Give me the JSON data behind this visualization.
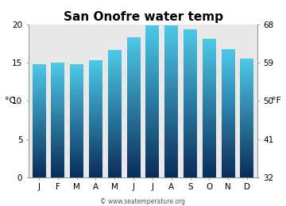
{
  "title": "San Onofre water temp",
  "months": [
    "J",
    "F",
    "M",
    "A",
    "M",
    "J",
    "J",
    "A",
    "S",
    "O",
    "N",
    "D"
  ],
  "values_c": [
    14.8,
    15.0,
    14.8,
    15.3,
    16.7,
    18.4,
    19.9,
    19.9,
    19.4,
    18.2,
    16.8,
    15.6
  ],
  "ylim_c": [
    0,
    20
  ],
  "yticks_c": [
    0,
    5,
    10,
    15,
    20
  ],
  "yticks_f": [
    32,
    41,
    50,
    59,
    68
  ],
  "ylabel_left": "°C",
  "ylabel_right": "°F",
  "bg_color": "#e8e8e8",
  "fig_color": "#ffffff",
  "bar_color_top": "#4dc8e8",
  "bar_color_bottom": "#0a2d5a",
  "title_fontsize": 11,
  "axis_fontsize": 8,
  "tick_fontsize": 7.5,
  "watermark": "© www.seatemperature.org",
  "bar_width": 0.72
}
